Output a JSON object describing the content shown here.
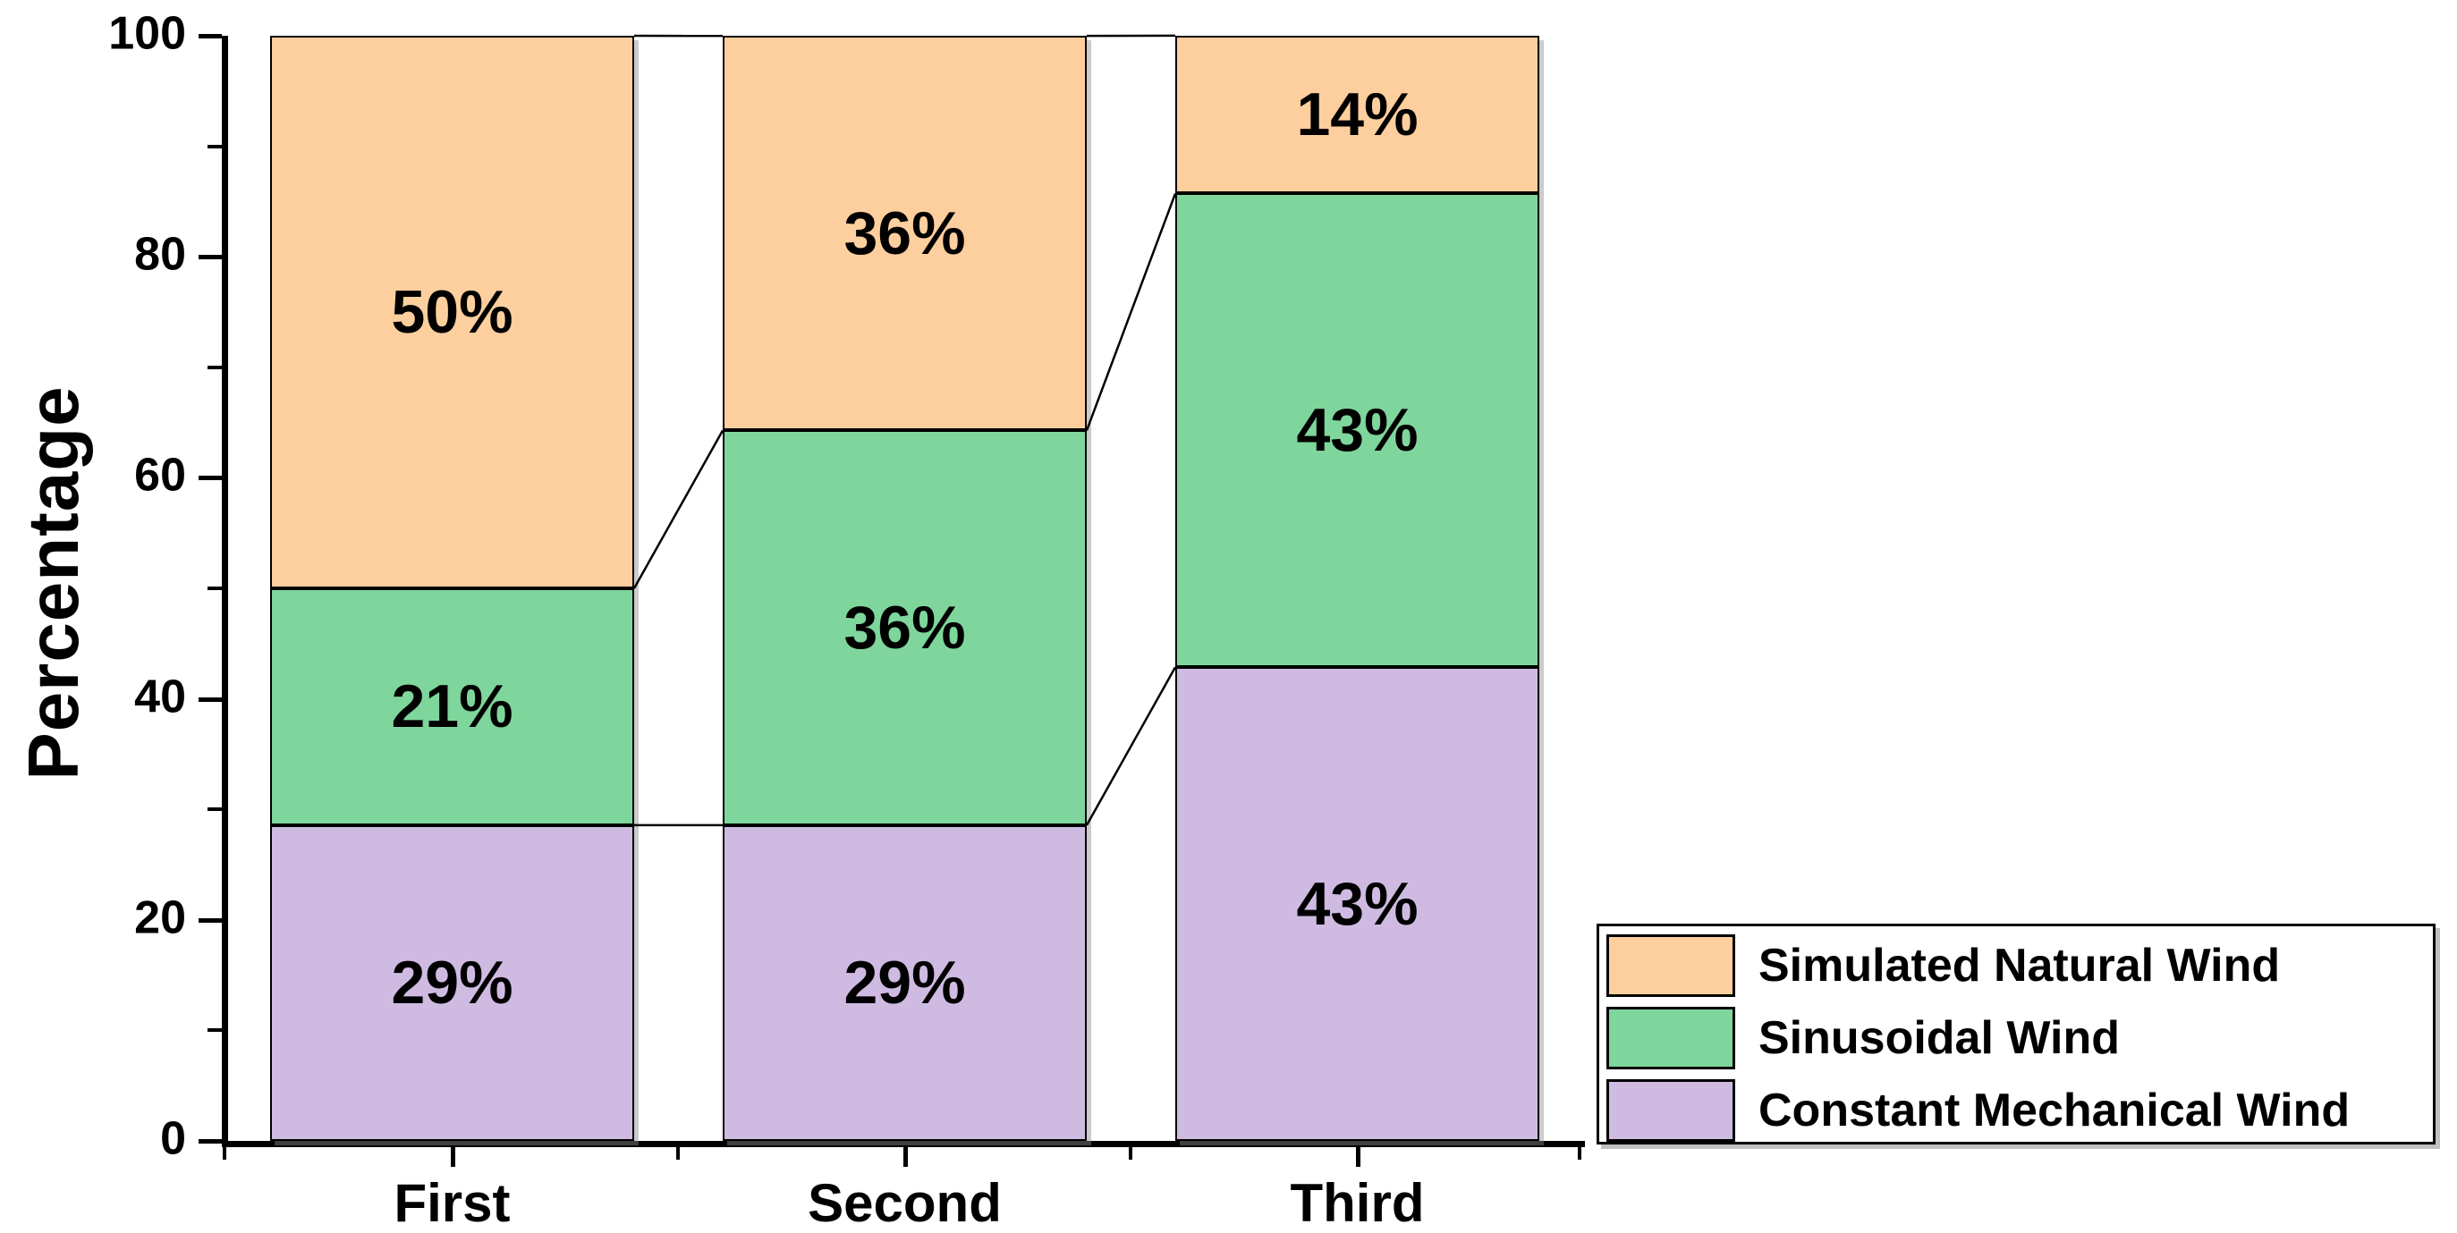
{
  "chart_data": {
    "type": "bar",
    "stacked": true,
    "title": "",
    "xlabel": "",
    "ylabel": "Percentage",
    "categories": [
      "First",
      "Second",
      "Third"
    ],
    "series": [
      {
        "name": "Constant Mechanical Wind",
        "color": "#cfbbe2",
        "values": [
          28.57,
          28.57,
          42.86
        ],
        "labels": [
          "29%",
          "29%",
          "43%"
        ]
      },
      {
        "name": "Sinusoidal Wind",
        "color": "#7ed69c",
        "values": [
          21.43,
          35.71,
          42.86
        ],
        "labels": [
          "21%",
          "36%",
          "43%"
        ]
      },
      {
        "name": "Simulated Natural Wind",
        "color": "#fecf9e",
        "values": [
          50.0,
          35.71,
          14.29
        ],
        "labels": [
          "50%",
          "36%",
          "14%"
        ]
      }
    ],
    "ylim": [
      0,
      100
    ],
    "yticks_major": [
      0,
      20,
      40,
      60,
      80,
      100
    ],
    "yticks_minor": [
      10,
      30,
      50,
      70,
      90
    ],
    "grid": false,
    "connectors": true,
    "legend_position": "bottom-right"
  },
  "legend": {
    "entries": [
      {
        "label": "Simulated Natural Wind",
        "color": "#fecf9e"
      },
      {
        "label": "Sinusoidal Wind",
        "color": "#7ed69c"
      },
      {
        "label": "Constant Mechanical Wind",
        "color": "#cfbbe2"
      }
    ]
  },
  "colors": {
    "axis": "#000000",
    "text": "#000000",
    "bar_border": "#000000",
    "background": "#ffffff"
  }
}
